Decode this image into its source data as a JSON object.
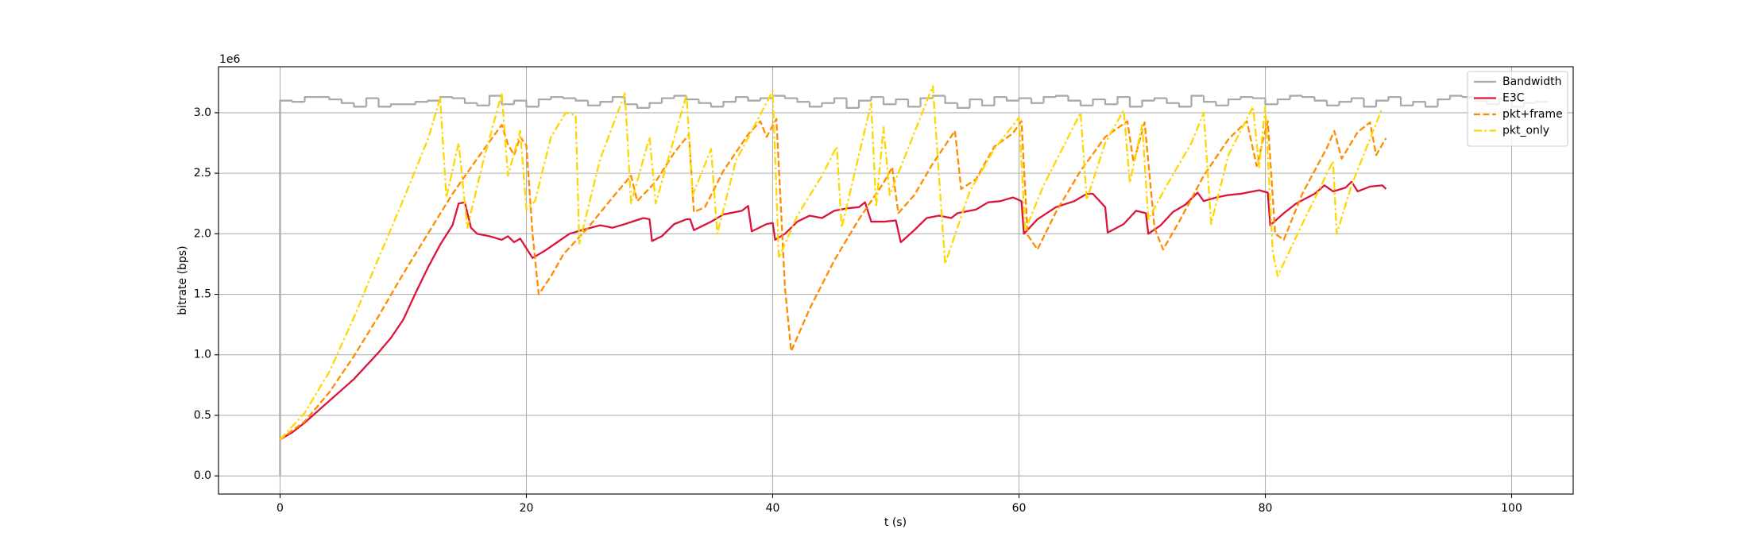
{
  "chart_data": {
    "type": "line",
    "xlabel": "t (s)",
    "ylabel": "bitrate (bps)",
    "y_offset_label": "1e6",
    "xlim": [
      -5,
      105
    ],
    "ylim": [
      -150000,
      3380000
    ],
    "xticks": [
      0,
      20,
      40,
      60,
      80,
      100
    ],
    "yticks": [
      {
        "value": 0,
        "label": "0.0"
      },
      {
        "value": 500000,
        "label": "0.5"
      },
      {
        "value": 1000000,
        "label": "1.0"
      },
      {
        "value": 1500000,
        "label": "1.5"
      },
      {
        "value": 2000000,
        "label": "2.0"
      },
      {
        "value": 2500000,
        "label": "2.5"
      },
      {
        "value": 3000000,
        "label": "3.0"
      }
    ],
    "grid": true,
    "legend": "upper-right",
    "series": [
      {
        "name": "Bandwidth",
        "color": "#aaaaaa",
        "dash": "solid",
        "drawstyle": "steps-post",
        "x": [
          0,
          0,
          1,
          2,
          3,
          4,
          5,
          6,
          7,
          8,
          9,
          10,
          11,
          12,
          13,
          14,
          15,
          16,
          17,
          18,
          19,
          20,
          21,
          22,
          23,
          24,
          25,
          26,
          27,
          28,
          29,
          30,
          31,
          32,
          33,
          34,
          35,
          36,
          37,
          38,
          39,
          40,
          41,
          42,
          43,
          44,
          45,
          46,
          47,
          48,
          49,
          50,
          51,
          52,
          53,
          54,
          55,
          56,
          57,
          58,
          59,
          60,
          61,
          62,
          63,
          64,
          65,
          66,
          67,
          68,
          69,
          70,
          71,
          72,
          73,
          74,
          75,
          76,
          77,
          78,
          79,
          80,
          81,
          82,
          83,
          84,
          85,
          86,
          87,
          88,
          89,
          90,
          91,
          92,
          93,
          94,
          95,
          96,
          97,
          98,
          99,
          100,
          101,
          102,
          103
        ],
        "values": [
          0,
          3100000,
          3090000,
          3130000,
          3130000,
          3110000,
          3080000,
          3050000,
          3120000,
          3050000,
          3070000,
          3070000,
          3090000,
          3100000,
          3130000,
          3120000,
          3080000,
          3060000,
          3140000,
          3070000,
          3100000,
          3050000,
          3110000,
          3130000,
          3120000,
          3100000,
          3060000,
          3090000,
          3130000,
          3070000,
          3040000,
          3080000,
          3120000,
          3140000,
          3110000,
          3080000,
          3050000,
          3090000,
          3130000,
          3100000,
          3120000,
          3140000,
          3120000,
          3090000,
          3050000,
          3080000,
          3120000,
          3040000,
          3100000,
          3130000,
          3070000,
          3110000,
          3050000,
          3120000,
          3140000,
          3080000,
          3040000,
          3110000,
          3060000,
          3130000,
          3100000,
          3120000,
          3080000,
          3130000,
          3140000,
          3100000,
          3060000,
          3110000,
          3070000,
          3130000,
          3050000,
          3100000,
          3120000,
          3080000,
          3050000,
          3140000,
          3090000,
          3060000,
          3110000,
          3130000,
          3120000,
          3070000,
          3110000,
          3140000,
          3130000,
          3100000,
          3060000,
          3090000,
          3120000,
          3050000,
          3100000,
          3130000,
          3060000,
          3090000,
          3050000,
          3110000,
          3140000,
          3130000,
          3100000,
          3070000,
          3110000,
          3050000,
          3080000,
          3090000,
          3090000
        ]
      },
      {
        "name": "E3C",
        "color": "#dc143c",
        "dash": "solid",
        "x": [
          0,
          1,
          2,
          3,
          4,
          5,
          6,
          7,
          8,
          9,
          10,
          11,
          12,
          13,
          14,
          14.5,
          15,
          15.5,
          16,
          17,
          18,
          18.5,
          19,
          19.5,
          20,
          20.5,
          21.5,
          22.5,
          23.5,
          24.5,
          26,
          27,
          28,
          29.5,
          30,
          30.2,
          31,
          32,
          33,
          33.3,
          33.6,
          35,
          36,
          37.5,
          38,
          38.3,
          39.5,
          40,
          40.2,
          41,
          42,
          43,
          44,
          45,
          46,
          47,
          47.5,
          48,
          49,
          50,
          50.4,
          51.5,
          52.5,
          53.5,
          54.5,
          55,
          56.5,
          57.5,
          58.5,
          59.5,
          60.2,
          60.4,
          61.5,
          63,
          64.5,
          65.5,
          66,
          67,
          67.2,
          68.5,
          69.5,
          70.3,
          70.5,
          71.5,
          72.5,
          73.5,
          74.5,
          75,
          76,
          77,
          78,
          79.5,
          80.2,
          80.4,
          81.5,
          82.5,
          84,
          84.8,
          85.5,
          86.5,
          87,
          87.5,
          88.5,
          89.5,
          89.8
        ],
        "values": [
          300000,
          360000,
          440000,
          530000,
          620000,
          710000,
          800000,
          910000,
          1020000,
          1140000,
          1290000,
          1510000,
          1720000,
          1910000,
          2070000,
          2250000,
          2260000,
          2050000,
          2000000,
          1980000,
          1950000,
          1980000,
          1930000,
          1960000,
          1880000,
          1800000,
          1860000,
          1930000,
          2000000,
          2030000,
          2070000,
          2050000,
          2080000,
          2130000,
          2120000,
          1940000,
          1980000,
          2080000,
          2120000,
          2120000,
          2030000,
          2100000,
          2160000,
          2190000,
          2230000,
          2020000,
          2080000,
          2090000,
          1950000,
          2000000,
          2100000,
          2150000,
          2130000,
          2190000,
          2210000,
          2220000,
          2260000,
          2100000,
          2100000,
          2110000,
          1930000,
          2030000,
          2130000,
          2150000,
          2130000,
          2170000,
          2200000,
          2260000,
          2270000,
          2300000,
          2270000,
          2000000,
          2120000,
          2220000,
          2270000,
          2330000,
          2330000,
          2220000,
          2010000,
          2080000,
          2190000,
          2170000,
          2000000,
          2070000,
          2180000,
          2240000,
          2340000,
          2270000,
          2300000,
          2320000,
          2330000,
          2360000,
          2340000,
          2070000,
          2170000,
          2250000,
          2330000,
          2400000,
          2350000,
          2380000,
          2430000,
          2350000,
          2390000,
          2400000,
          2370000
        ]
      },
      {
        "name": "pkt+frame",
        "color": "#ff8c00",
        "dash": "dashed",
        "x": [
          0,
          2,
          4,
          6,
          8,
          10,
          12,
          14,
          16,
          17,
          18,
          18.5,
          19,
          19.5,
          20,
          20.5,
          21,
          22,
          23,
          25,
          27,
          28.5,
          29,
          30.5,
          32,
          33.2,
          33.6,
          34.5,
          36,
          38,
          39,
          39.5,
          40.3,
          41,
          41.5,
          43,
          45,
          47,
          49,
          49.7,
          50.2,
          51.5,
          53,
          54.8,
          55.3,
          56.5,
          58,
          59.5,
          60.2,
          60.7,
          61.5,
          63,
          65,
          67,
          68.8,
          69.3,
          70.2,
          71,
          71.7,
          73,
          75,
          77,
          78.5,
          79.3,
          80.2,
          80.8,
          81.5,
          83,
          85,
          85.6,
          86.2,
          87.5,
          88.5,
          89,
          89.8
        ],
        "values": [
          300000,
          450000,
          690000,
          990000,
          1320000,
          1670000,
          2000000,
          2330000,
          2620000,
          2760000,
          2900000,
          2740000,
          2650000,
          2800000,
          2730000,
          2000000,
          1500000,
          1650000,
          1830000,
          2050000,
          2300000,
          2480000,
          2270000,
          2430000,
          2670000,
          2820000,
          2180000,
          2220000,
          2520000,
          2820000,
          2930000,
          2800000,
          2950000,
          1550000,
          1030000,
          1380000,
          1780000,
          2120000,
          2420000,
          2550000,
          2170000,
          2320000,
          2580000,
          2850000,
          2370000,
          2450000,
          2720000,
          2830000,
          2930000,
          1990000,
          1870000,
          2180000,
          2520000,
          2800000,
          2930000,
          2590000,
          2920000,
          2050000,
          1870000,
          2100000,
          2480000,
          2780000,
          2930000,
          2560000,
          2930000,
          2000000,
          1950000,
          2330000,
          2710000,
          2850000,
          2620000,
          2840000,
          2920000,
          2650000,
          2790000
        ]
      },
      {
        "name": "pkt_only",
        "color": "#ffd700",
        "dash": "dashdot",
        "x": [
          0,
          2,
          4,
          6,
          8,
          10,
          12,
          13,
          13.5,
          14.5,
          15.2,
          16.5,
          18,
          18.5,
          19.5,
          20,
          20.7,
          22,
          23.2,
          24,
          24.3,
          26,
          28,
          28.5,
          30,
          30.5,
          33,
          33.5,
          35,
          35.5,
          37,
          40,
          40.5,
          42,
          44,
          45.2,
          45.6,
          47,
          48,
          48.4,
          49,
          49.5,
          53,
          54,
          56,
          58,
          60,
          60.5,
          62,
          64,
          65,
          65.5,
          67,
          68.5,
          69,
          70,
          70.5,
          72,
          74,
          75,
          75.6,
          77,
          79,
          79.5,
          80,
          80.6,
          81,
          83,
          85.5,
          85.8,
          87,
          89.5
        ],
        "values": [
          300000,
          520000,
          860000,
          1310000,
          1800000,
          2280000,
          2780000,
          3120000,
          2300000,
          2750000,
          2050000,
          2600000,
          3160000,
          2480000,
          2850000,
          2200000,
          2270000,
          2800000,
          3000000,
          2980000,
          1920000,
          2620000,
          3160000,
          2250000,
          2800000,
          2250000,
          3150000,
          2320000,
          2700000,
          2000000,
          2600000,
          3180000,
          1800000,
          2150000,
          2480000,
          2720000,
          2050000,
          2650000,
          3080000,
          2220000,
          2880000,
          2320000,
          3220000,
          1750000,
          2350000,
          2700000,
          2960000,
          2030000,
          2400000,
          2800000,
          3000000,
          2280000,
          2750000,
          3020000,
          2420000,
          2900000,
          2120000,
          2400000,
          2750000,
          3000000,
          2080000,
          2650000,
          3050000,
          2550000,
          3050000,
          1850000,
          1650000,
          2080000,
          2600000,
          2000000,
          2400000,
          3040000
        ]
      }
    ]
  }
}
